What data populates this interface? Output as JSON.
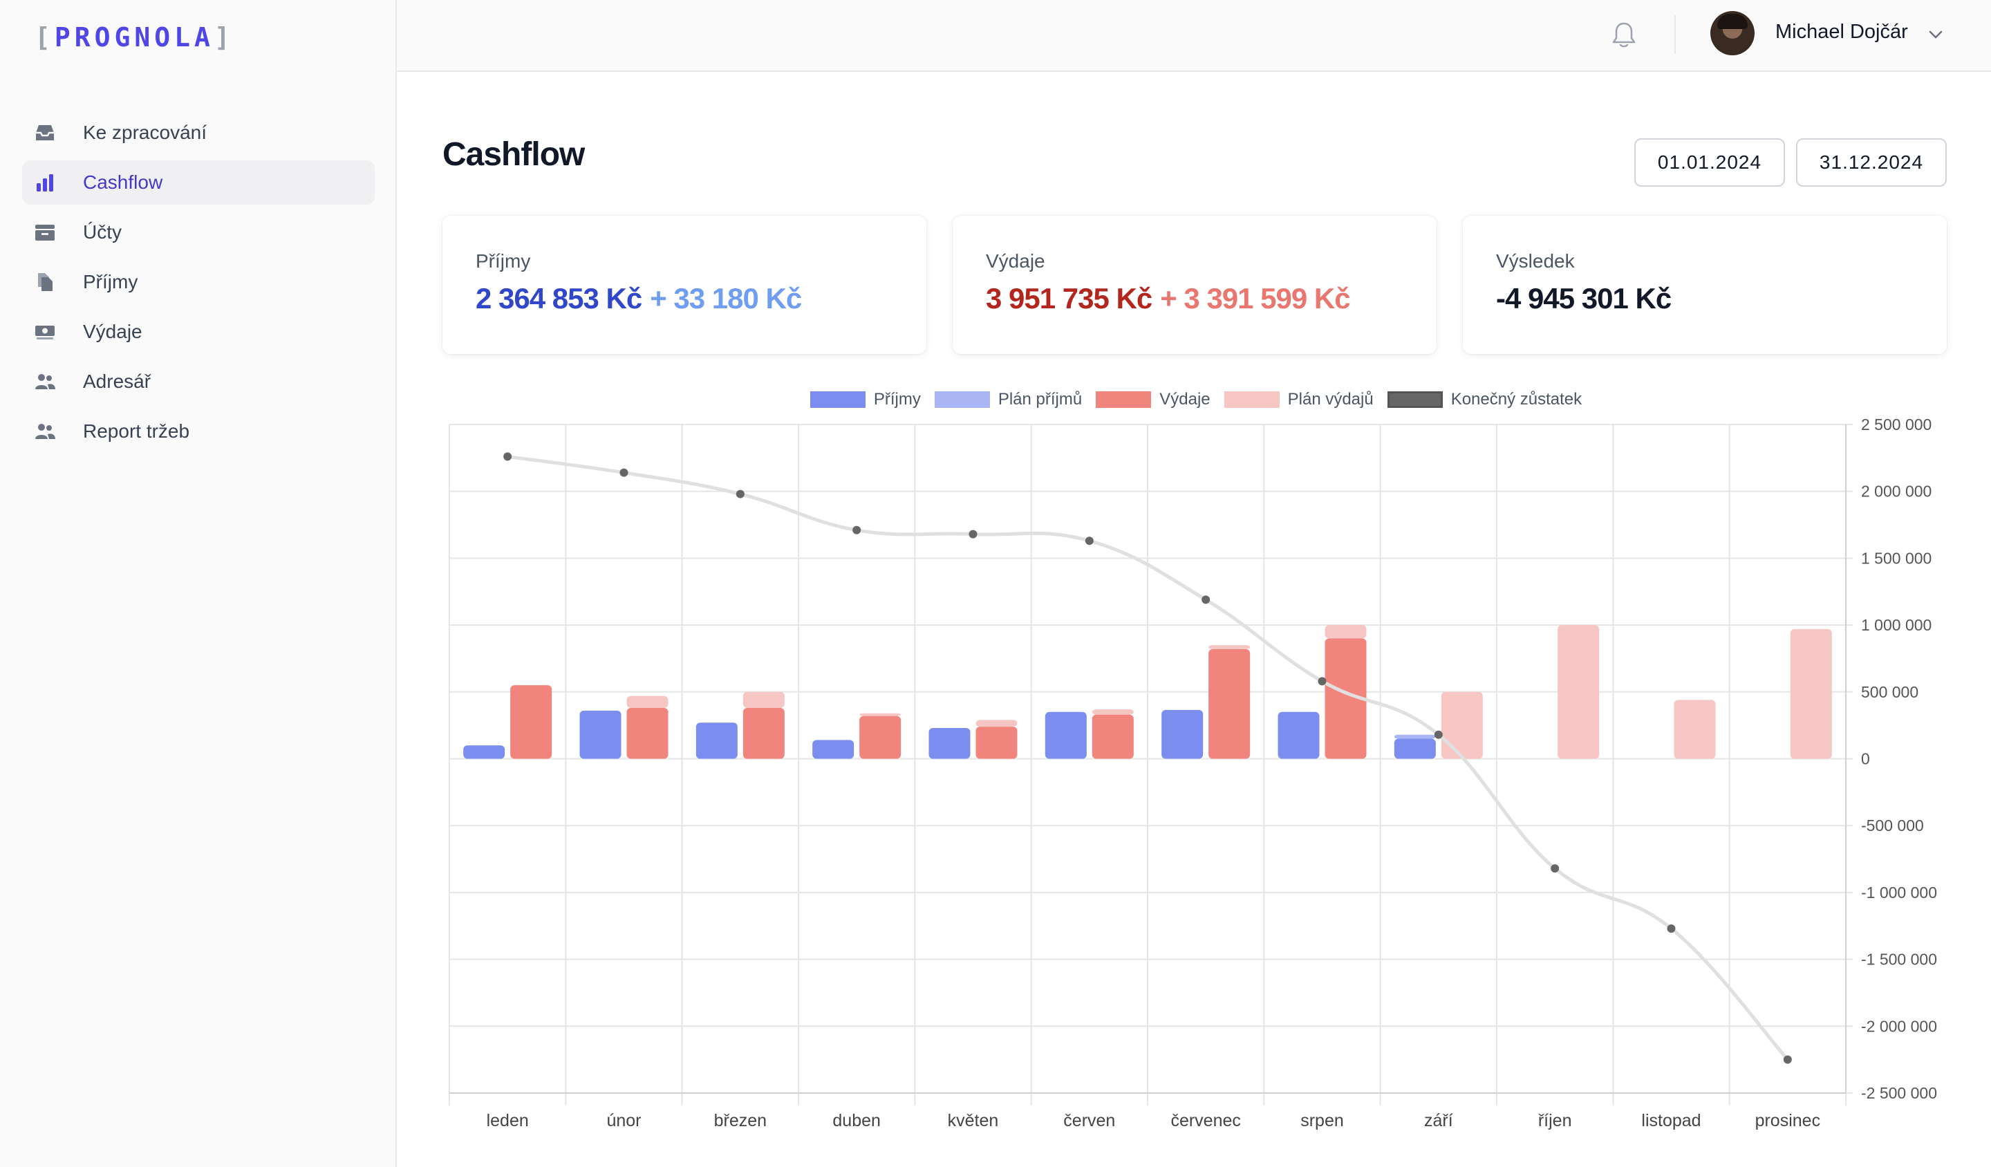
{
  "app": {
    "logo_text": "PROGNOLA"
  },
  "sidebar": {
    "items": [
      {
        "label": "Ke zpracování",
        "icon": "inbox-icon"
      },
      {
        "label": "Cashflow",
        "icon": "bar-chart-icon",
        "active": true
      },
      {
        "label": "Účty",
        "icon": "wallet-icon"
      },
      {
        "label": "Příjmy",
        "icon": "documents-icon"
      },
      {
        "label": "Výdaje",
        "icon": "banknote-icon"
      },
      {
        "label": "Adresář",
        "icon": "users-icon"
      },
      {
        "label": "Report tržeb",
        "icon": "users-icon"
      }
    ]
  },
  "header": {
    "user_name": "Michael Dojčár"
  },
  "page": {
    "title": "Cashflow",
    "date_from": "01.01.2024",
    "date_to": "31.12.2024"
  },
  "summary": {
    "income": {
      "label": "Příjmy",
      "value": "2 364 853 Kč",
      "plan": "+ 33 180 Kč"
    },
    "expenses": {
      "label": "Výdaje",
      "value": "3 951 735 Kč",
      "plan": "+ 3 391 599 Kč"
    },
    "result": {
      "label": "Výsledek",
      "value": "-4 945 301 Kč"
    }
  },
  "colors": {
    "income": "#7b8ef0",
    "income_plan": "#aab5f5",
    "expense": "#f1847c",
    "expense_plan": "#f5c6c4",
    "balance": "#666666",
    "income_text": "#2f47c8",
    "income_plan_text": "#6f9ef0",
    "expense_text": "#b3261e",
    "expense_plan_text": "#e8776f"
  },
  "chart_data": {
    "type": "bar",
    "categories": [
      "leden",
      "únor",
      "březen",
      "duben",
      "květen",
      "červen",
      "červenec",
      "srpen",
      "září",
      "říjen",
      "listopad",
      "prosinec"
    ],
    "series": [
      {
        "name": "Příjmy",
        "values": [
          100000,
          360000,
          270000,
          140000,
          230000,
          350000,
          365000,
          350000,
          150000,
          0,
          0,
          0
        ]
      },
      {
        "name": "Plán příjmů",
        "values": [
          0,
          0,
          0,
          0,
          0,
          0,
          0,
          0,
          30000,
          0,
          0,
          0
        ]
      },
      {
        "name": "Výdaje",
        "values": [
          550000,
          380000,
          380000,
          320000,
          240000,
          330000,
          820000,
          900000,
          0,
          0,
          0,
          0
        ]
      },
      {
        "name": "Plán výdajů",
        "values": [
          0,
          90000,
          120000,
          20000,
          50000,
          40000,
          30000,
          100000,
          500000,
          1000000,
          440000,
          970000
        ]
      },
      {
        "name": "Konečný zůstatek",
        "type": "line",
        "values": [
          2260000,
          2140000,
          1980000,
          1710000,
          1680000,
          1630000,
          1190000,
          580000,
          180000,
          -820000,
          -1270000,
          -2250000
        ]
      }
    ],
    "ylim": [
      -2500000,
      2500000
    ],
    "ytick_labels": [
      "2 500 000",
      "2 000 000",
      "1 500 000",
      "1 000 000",
      "500 000",
      "0",
      "-500 000",
      "-1 000 000",
      "-1 500 000",
      "-2 000 000",
      "-2 500 000"
    ],
    "legend_position": "top-center",
    "y_axis_position": "right",
    "grid": true
  }
}
